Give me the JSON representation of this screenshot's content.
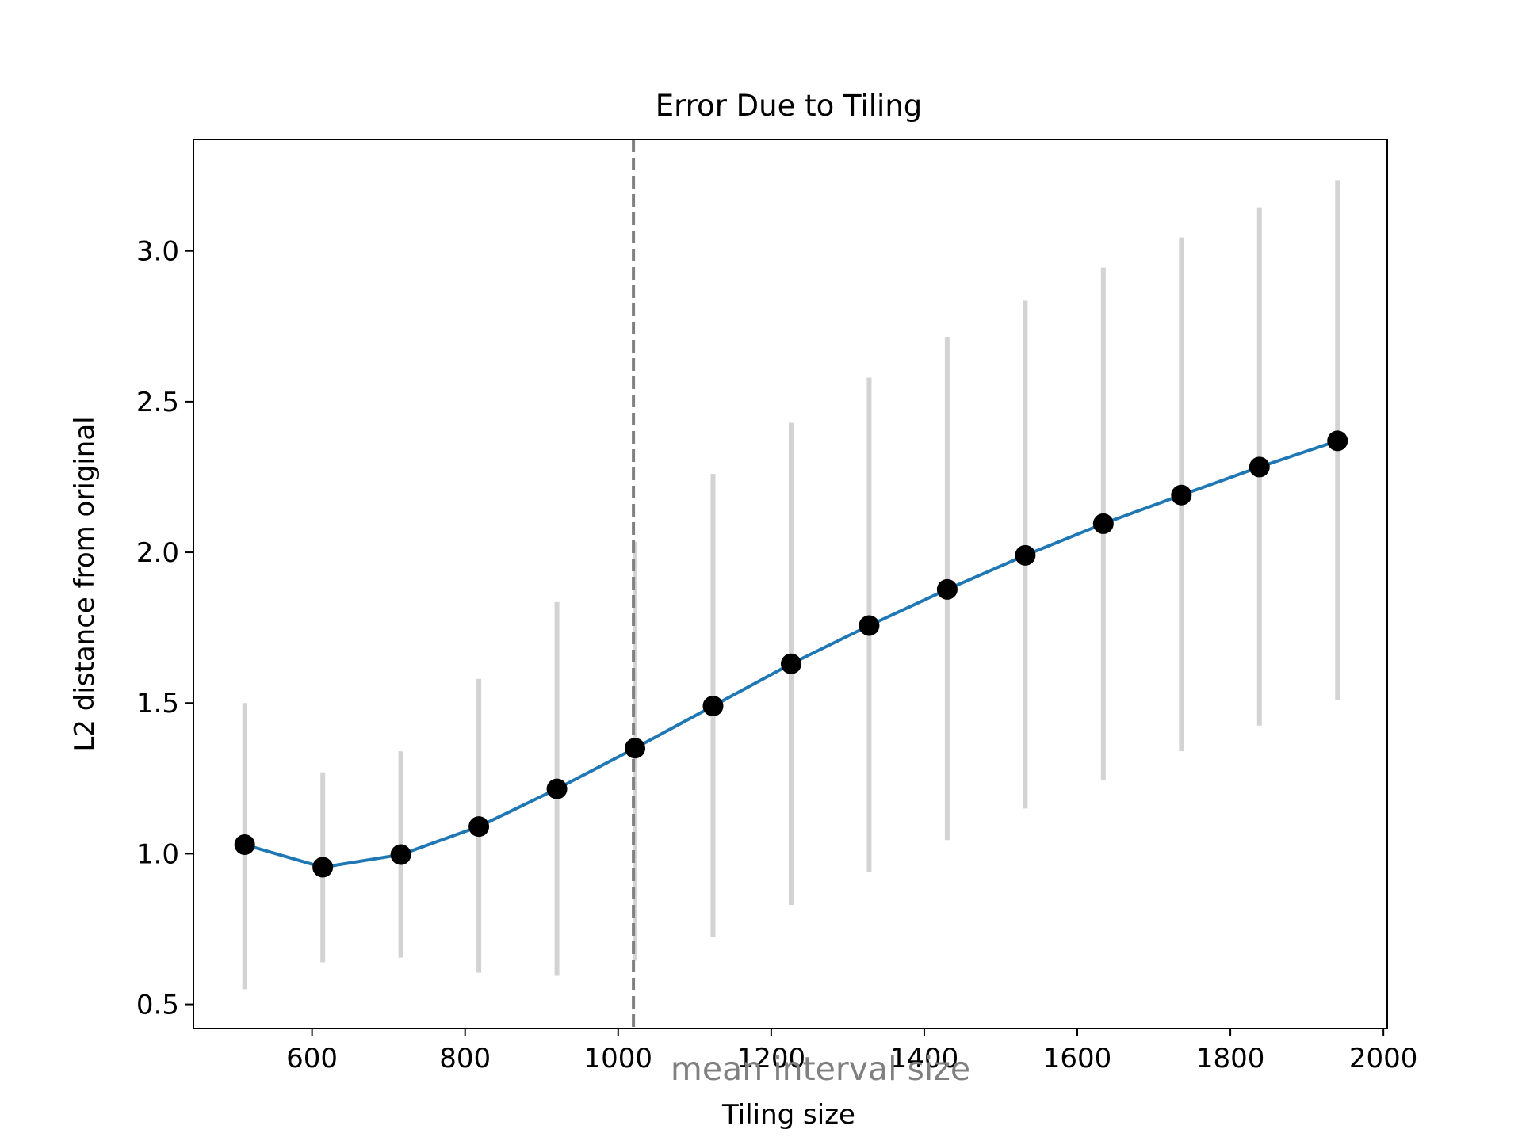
{
  "chart_data": {
    "type": "line",
    "title": "Error Due to Tiling",
    "xlabel": "Tiling size",
    "ylabel": "L2 distance from original",
    "xlim": [
      445,
      2005
    ],
    "ylim": [
      0.42,
      3.37
    ],
    "xticks": [
      600,
      800,
      1000,
      1200,
      1400,
      1600,
      1800,
      2000
    ],
    "yticks": [
      0.5,
      1.0,
      1.5,
      2.0,
      2.5,
      3.0
    ],
    "grid": false,
    "annotation": {
      "label": "mean interval size",
      "x": 1020,
      "style": "dashed-vertical-line",
      "color": "#808080"
    },
    "series": [
      {
        "x": [
          512,
          614,
          716,
          818,
          920,
          1022,
          1124,
          1226,
          1328,
          1430,
          1532,
          1634,
          1736,
          1838,
          1940
        ],
        "y": [
          1.03,
          0.955,
          0.997,
          1.09,
          1.215,
          1.35,
          1.49,
          1.63,
          1.757,
          1.877,
          1.99,
          2.095,
          2.19,
          2.283,
          2.37
        ],
        "yerr_low": [
          0.55,
          0.64,
          0.655,
          0.605,
          0.595,
          0.645,
          0.725,
          0.83,
          0.94,
          1.045,
          1.15,
          1.245,
          1.34,
          1.425,
          1.51
        ],
        "yerr_high": [
          1.5,
          1.27,
          1.34,
          1.58,
          1.835,
          2.035,
          2.26,
          2.43,
          2.58,
          2.715,
          2.835,
          2.945,
          3.045,
          3.145,
          3.235
        ],
        "line_color": "#1f77b4",
        "marker_color": "#000000",
        "errorbar_color": "#d3d3d3"
      }
    ]
  }
}
